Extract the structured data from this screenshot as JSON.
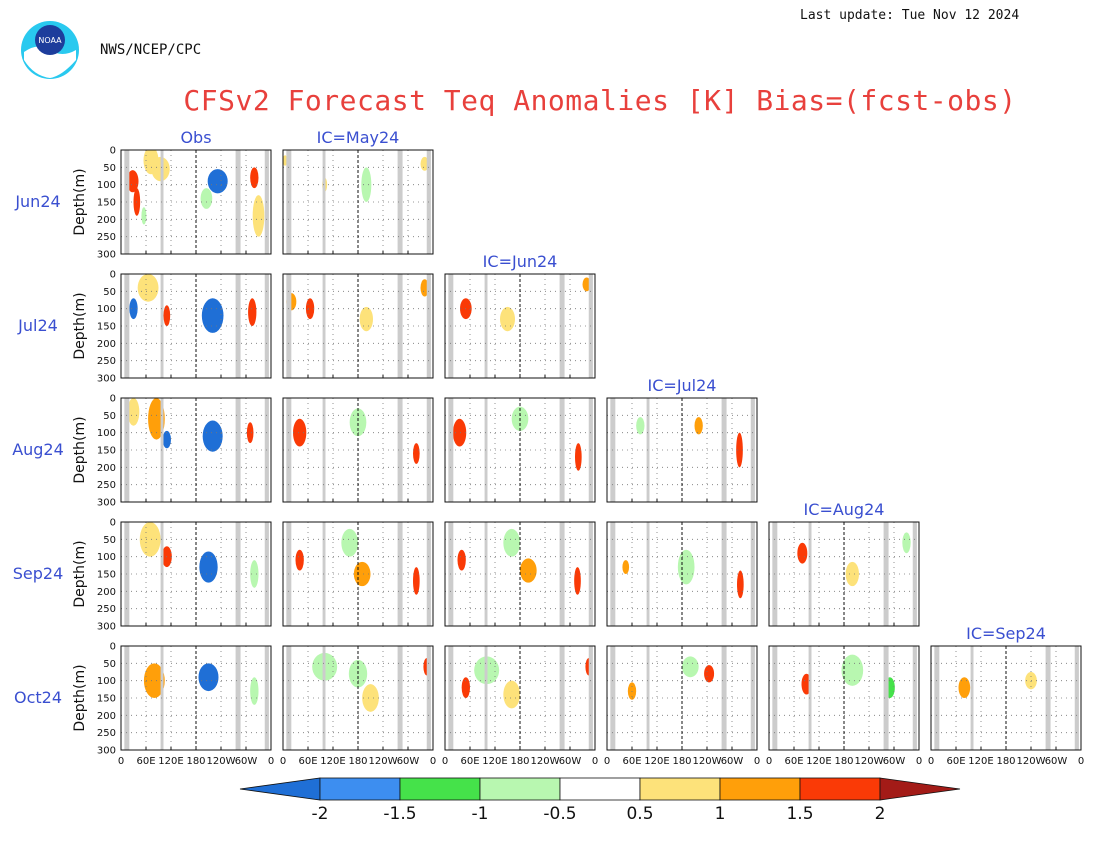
{
  "header": {
    "last_update": "Last update: Tue Nov 12 2024",
    "agency": "NWS/NCEP/CPC",
    "title": "CFSv2 Forecast Teq Anomalies [K] Bias=(fcst-obs)",
    "logo_text": "NOAA"
  },
  "chart_data": {
    "type": "heatmap",
    "title": "CFSv2 Forecast Teq Anomalies [K] Bias=(fcst-obs)",
    "column_headers": [
      "Obs",
      "IC=May24",
      "IC=Jun24",
      "IC=Jul24",
      "IC=Aug24",
      "IC=Sep24"
    ],
    "rows": [
      "Jun24",
      "Jul24",
      "Aug24",
      "Sep24",
      "Oct24"
    ],
    "ylabel": "Depth(m)",
    "y_ticks": [
      "0",
      "50",
      "100",
      "150",
      "200",
      "250",
      "300"
    ],
    "ylim": [
      0,
      300
    ],
    "x_ticks": [
      "0",
      "60E",
      "120E",
      "180",
      "120W",
      "60W",
      "0"
    ],
    "x_tick_lon": [
      0,
      60,
      120,
      180,
      240,
      300,
      360
    ],
    "xlim": [
      0,
      360
    ],
    "date_line_lon": 180,
    "land_lon": [
      [
        8,
        20
      ],
      [
        95,
        102
      ],
      [
        275,
        287
      ],
      [
        345,
        355
      ]
    ],
    "panels_present": [
      [
        true,
        true,
        false,
        false,
        false,
        false
      ],
      [
        true,
        true,
        true,
        false,
        false,
        false
      ],
      [
        true,
        true,
        true,
        true,
        false,
        false
      ],
      [
        true,
        true,
        true,
        true,
        true,
        false
      ],
      [
        true,
        true,
        true,
        true,
        true,
        true
      ]
    ],
    "panel_features": [
      [
        [
          {
            "lon": 28,
            "depth": 90,
            "rlon": 14,
            "rdep": 32,
            "v": 1.5
          },
          {
            "lon": 38,
            "depth": 150,
            "rlon": 8,
            "rdep": 40,
            "v": 1.5
          },
          {
            "lon": 72,
            "depth": 30,
            "rlon": 18,
            "rdep": 40,
            "v": 0.5
          },
          {
            "lon": 95,
            "depth": 55,
            "rlon": 22,
            "rdep": 35,
            "v": 0.5
          },
          {
            "lon": 232,
            "depth": 90,
            "rlon": 24,
            "rdep": 35,
            "v": -1.5
          },
          {
            "lon": 205,
            "depth": 140,
            "rlon": 14,
            "rdep": 30,
            "v": -0.5
          },
          {
            "lon": 320,
            "depth": 80,
            "rlon": 10,
            "rdep": 30,
            "v": 1.5
          },
          {
            "lon": 330,
            "depth": 190,
            "rlon": 14,
            "rdep": 60,
            "v": 0.5
          },
          {
            "lon": 55,
            "depth": 190,
            "rlon": 6,
            "rdep": 25,
            "v": -0.5
          }
        ],
        [
          {
            "lon": 5,
            "depth": 30,
            "rlon": 6,
            "rdep": 15,
            "v": 0.5
          },
          {
            "lon": 100,
            "depth": 100,
            "rlon": 6,
            "rdep": 20,
            "v": 0.5
          },
          {
            "lon": 200,
            "depth": 100,
            "rlon": 12,
            "rdep": 50,
            "v": -0.5
          },
          {
            "lon": 340,
            "depth": 40,
            "rlon": 10,
            "rdep": 20,
            "v": 0.5
          }
        ]
      ],
      [
        [
          {
            "lon": 30,
            "depth": 100,
            "rlon": 10,
            "rdep": 30,
            "v": -1.5
          },
          {
            "lon": 65,
            "depth": 40,
            "rlon": 25,
            "rdep": 40,
            "v": 0.5
          },
          {
            "lon": 110,
            "depth": 120,
            "rlon": 8,
            "rdep": 30,
            "v": 1.5
          },
          {
            "lon": 220,
            "depth": 120,
            "rlon": 26,
            "rdep": 50,
            "v": -1.5
          },
          {
            "lon": 315,
            "depth": 110,
            "rlon": 10,
            "rdep": 40,
            "v": 1.5
          }
        ],
        [
          {
            "lon": 20,
            "depth": 80,
            "rlon": 12,
            "rdep": 25,
            "v": 1
          },
          {
            "lon": 65,
            "depth": 100,
            "rlon": 10,
            "rdep": 30,
            "v": 1.5
          },
          {
            "lon": 200,
            "depth": 130,
            "rlon": 16,
            "rdep": 35,
            "v": 0.5
          },
          {
            "lon": 340,
            "depth": 40,
            "rlon": 10,
            "rdep": 25,
            "v": 1
          }
        ],
        [
          {
            "lon": 50,
            "depth": 100,
            "rlon": 14,
            "rdep": 30,
            "v": 1.5
          },
          {
            "lon": 150,
            "depth": 130,
            "rlon": 18,
            "rdep": 35,
            "v": 0.5
          },
          {
            "lon": 340,
            "depth": 30,
            "rlon": 10,
            "rdep": 20,
            "v": 1
          }
        ]
      ],
      [
        [
          {
            "lon": 30,
            "depth": 40,
            "rlon": 14,
            "rdep": 40,
            "v": 0.5
          },
          {
            "lon": 85,
            "depth": 60,
            "rlon": 20,
            "rdep": 60,
            "v": 1
          },
          {
            "lon": 110,
            "depth": 120,
            "rlon": 10,
            "rdep": 25,
            "v": -1.5
          },
          {
            "lon": 220,
            "depth": 110,
            "rlon": 24,
            "rdep": 45,
            "v": -1.5
          },
          {
            "lon": 310,
            "depth": 100,
            "rlon": 8,
            "rdep": 30,
            "v": 1.5
          }
        ],
        [
          {
            "lon": 40,
            "depth": 100,
            "rlon": 16,
            "rdep": 40,
            "v": 1.5
          },
          {
            "lon": 180,
            "depth": 70,
            "rlon": 20,
            "rdep": 40,
            "v": -0.5
          },
          {
            "lon": 320,
            "depth": 160,
            "rlon": 8,
            "rdep": 30,
            "v": 1.5
          }
        ],
        [
          {
            "lon": 35,
            "depth": 100,
            "rlon": 16,
            "rdep": 40,
            "v": 1.5
          },
          {
            "lon": 180,
            "depth": 60,
            "rlon": 20,
            "rdep": 35,
            "v": -0.5
          },
          {
            "lon": 320,
            "depth": 170,
            "rlon": 8,
            "rdep": 40,
            "v": 1.5
          }
        ],
        [
          {
            "lon": 80,
            "depth": 80,
            "rlon": 10,
            "rdep": 25,
            "v": -0.5
          },
          {
            "lon": 220,
            "depth": 80,
            "rlon": 10,
            "rdep": 25,
            "v": 1
          },
          {
            "lon": 318,
            "depth": 150,
            "rlon": 8,
            "rdep": 50,
            "v": 1.5
          }
        ]
      ],
      [
        [
          {
            "lon": 70,
            "depth": 50,
            "rlon": 25,
            "rdep": 50,
            "v": 0.5
          },
          {
            "lon": 110,
            "depth": 100,
            "rlon": 12,
            "rdep": 30,
            "v": 1.5
          },
          {
            "lon": 210,
            "depth": 130,
            "rlon": 22,
            "rdep": 45,
            "v": -1.5
          },
          {
            "lon": 320,
            "depth": 150,
            "rlon": 10,
            "rdep": 40,
            "v": -0.5
          }
        ],
        [
          {
            "lon": 40,
            "depth": 110,
            "rlon": 10,
            "rdep": 30,
            "v": 1.5
          },
          {
            "lon": 160,
            "depth": 60,
            "rlon": 20,
            "rdep": 40,
            "v": -0.5
          },
          {
            "lon": 190,
            "depth": 150,
            "rlon": 20,
            "rdep": 35,
            "v": 1
          },
          {
            "lon": 320,
            "depth": 170,
            "rlon": 8,
            "rdep": 40,
            "v": 1.5
          }
        ],
        [
          {
            "lon": 40,
            "depth": 110,
            "rlon": 10,
            "rdep": 30,
            "v": 1.5
          },
          {
            "lon": 160,
            "depth": 60,
            "rlon": 20,
            "rdep": 40,
            "v": -0.5
          },
          {
            "lon": 200,
            "depth": 140,
            "rlon": 20,
            "rdep": 35,
            "v": 1
          },
          {
            "lon": 318,
            "depth": 170,
            "rlon": 8,
            "rdep": 40,
            "v": 1.5
          }
        ],
        [
          {
            "lon": 45,
            "depth": 130,
            "rlon": 8,
            "rdep": 20,
            "v": 1
          },
          {
            "lon": 190,
            "depth": 130,
            "rlon": 20,
            "rdep": 50,
            "v": -0.5
          },
          {
            "lon": 320,
            "depth": 180,
            "rlon": 8,
            "rdep": 40,
            "v": 1.5
          }
        ],
        [
          {
            "lon": 80,
            "depth": 90,
            "rlon": 12,
            "rdep": 30,
            "v": 1.5
          },
          {
            "lon": 200,
            "depth": 150,
            "rlon": 16,
            "rdep": 35,
            "v": 0.5
          },
          {
            "lon": 330,
            "depth": 60,
            "rlon": 10,
            "rdep": 30,
            "v": -0.5
          }
        ]
      ],
      [
        [
          {
            "lon": 80,
            "depth": 100,
            "rlon": 25,
            "rdep": 50,
            "v": 1
          },
          {
            "lon": 210,
            "depth": 90,
            "rlon": 24,
            "rdep": 40,
            "v": -1.5
          },
          {
            "lon": 320,
            "depth": 130,
            "rlon": 10,
            "rdep": 40,
            "v": -0.5
          }
        ],
        [
          {
            "lon": 100,
            "depth": 60,
            "rlon": 30,
            "rdep": 40,
            "v": -0.5
          },
          {
            "lon": 180,
            "depth": 80,
            "rlon": 22,
            "rdep": 40,
            "v": -0.5
          },
          {
            "lon": 210,
            "depth": 150,
            "rlon": 20,
            "rdep": 40,
            "v": 0.5
          },
          {
            "lon": 345,
            "depth": 60,
            "rlon": 8,
            "rdep": 25,
            "v": 1.5
          }
        ],
        [
          {
            "lon": 100,
            "depth": 70,
            "rlon": 30,
            "rdep": 40,
            "v": -0.5
          },
          {
            "lon": 50,
            "depth": 120,
            "rlon": 10,
            "rdep": 30,
            "v": 1.5
          },
          {
            "lon": 160,
            "depth": 140,
            "rlon": 20,
            "rdep": 40,
            "v": 0.5
          },
          {
            "lon": 345,
            "depth": 60,
            "rlon": 8,
            "rdep": 25,
            "v": 1.5
          }
        ],
        [
          {
            "lon": 200,
            "depth": 60,
            "rlon": 20,
            "rdep": 30,
            "v": -0.5
          },
          {
            "lon": 60,
            "depth": 130,
            "rlon": 10,
            "rdep": 25,
            "v": 1
          },
          {
            "lon": 245,
            "depth": 80,
            "rlon": 12,
            "rdep": 25,
            "v": 1.5
          }
        ],
        [
          {
            "lon": 200,
            "depth": 70,
            "rlon": 26,
            "rdep": 45,
            "v": -0.5
          },
          {
            "lon": 90,
            "depth": 110,
            "rlon": 12,
            "rdep": 30,
            "v": 1.5
          },
          {
            "lon": 290,
            "depth": 120,
            "rlon": 12,
            "rdep": 30,
            "v": -1
          }
        ],
        [
          {
            "lon": 80,
            "depth": 120,
            "rlon": 14,
            "rdep": 30,
            "v": 1
          },
          {
            "lon": 240,
            "depth": 100,
            "rlon": 14,
            "rdep": 25,
            "v": 0.5
          }
        ]
      ]
    ],
    "colorbar": {
      "labels": [
        "-2",
        "-1.5",
        "-1",
        "-0.5",
        "0.5",
        "1",
        "1.5",
        "2"
      ],
      "bins": [
        {
          "lo": -2,
          "hi": -1.5,
          "color": "#3d8ef0"
        },
        {
          "lo": -1.5,
          "hi": -1,
          "color": "#45e24a"
        },
        {
          "lo": -1,
          "hi": -0.5,
          "color": "#b8f7b0"
        },
        {
          "lo": -0.5,
          "hi": 0.5,
          "color": "#ffffff"
        },
        {
          "lo": 0.5,
          "hi": 1,
          "color": "#fde27a"
        },
        {
          "lo": 1,
          "hi": 1.5,
          "color": "#ff9f0a"
        },
        {
          "lo": 1.5,
          "hi": 2,
          "color": "#fa3a06"
        }
      ],
      "under_color": "#1f6fd6",
      "over_color": "#a31b17"
    },
    "value_colors": {
      "-1.5": "#1f6fd6",
      "-1": "#45e24a",
      "-0.5": "#b8f7b0",
      "0.5": "#fde27a",
      "1": "#ff9f0a",
      "1.5": "#fa3a06"
    },
    "colors": {
      "title": "#e8403c",
      "labels": "#3a4fd0",
      "land": "#cccccc"
    }
  }
}
